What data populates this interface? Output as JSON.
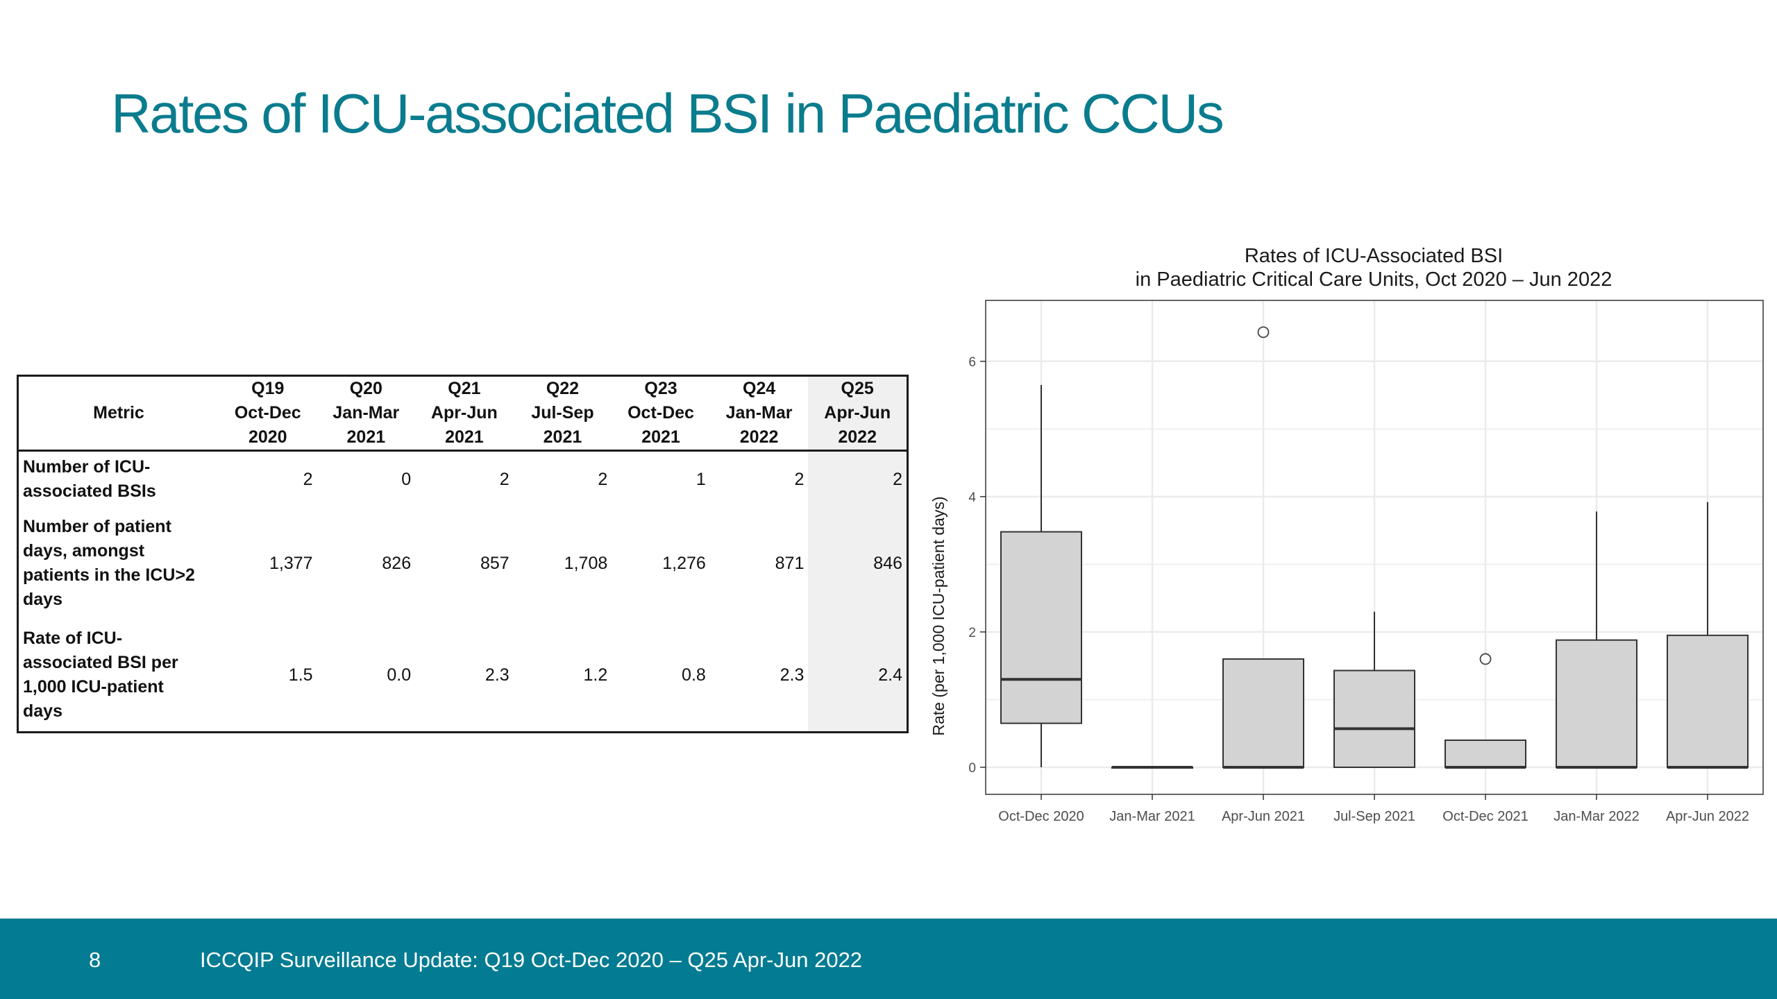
{
  "slide": {
    "title": "Rates of ICU-associated BSI in Paediatric CCUs",
    "page_number": "8",
    "footer": "ICCQIP Surveillance Update: Q19 Oct-Dec 2020 – Q25 Apr-Jun 2022"
  },
  "table": {
    "metric_header": "Metric",
    "columns": [
      {
        "q": "Q19",
        "period": "Oct-Dec",
        "year": "2020"
      },
      {
        "q": "Q20",
        "period": "Jan-Mar",
        "year": "2021"
      },
      {
        "q": "Q21",
        "period": "Apr-Jun",
        "year": "2021"
      },
      {
        "q": "Q22",
        "period": "Jul-Sep",
        "year": "2021"
      },
      {
        "q": "Q23",
        "period": "Oct-Dec",
        "year": "2021"
      },
      {
        "q": "Q24",
        "period": "Jan-Mar",
        "year": "2022"
      },
      {
        "q": "Q25",
        "period": "Apr-Jun",
        "year": "2022"
      }
    ],
    "rows": [
      {
        "label_lines": [
          "Number of ICU-",
          "associated BSIs"
        ],
        "values": [
          "2",
          "0",
          "2",
          "2",
          "1",
          "2",
          "2"
        ]
      },
      {
        "label_lines": [
          "Number of patient",
          "days, amongst",
          "patients in the ICU>2",
          "days"
        ],
        "values": [
          "1,377",
          "826",
          "857",
          "1,708",
          "1,276",
          "871",
          "846"
        ]
      },
      {
        "label_lines": [
          "Rate of ICU-",
          "associated BSI per",
          "1,000 ICU-patient",
          "days"
        ],
        "values": [
          "1.5",
          "0.0",
          "2.3",
          "1.2",
          "0.8",
          "2.3",
          "2.4"
        ]
      }
    ]
  },
  "chart_data": {
    "type": "boxplot",
    "title": "Rates of ICU-Associated BSI",
    "subtitle": "in Paediatric Critical Care Units, Oct 2020 – Jun 2022",
    "xlabel": "",
    "ylabel": "Rate (per 1,000 ICU-patient days)",
    "ylim": [
      -0.4,
      6.9
    ],
    "yticks": [
      0,
      2,
      4,
      6
    ],
    "grid": true,
    "categories": [
      "Oct-Dec 2020",
      "Jan-Mar 2021",
      "Apr-Jun 2021",
      "Jul-Sep 2021",
      "Oct-Dec 2021",
      "Jan-Mar 2022",
      "Apr-Jun 2022"
    ],
    "boxes": [
      {
        "whisker_low": 0,
        "q1": 0.65,
        "median": 1.3,
        "q3": 3.48,
        "whisker_high": 5.65,
        "outliers": []
      },
      {
        "whisker_low": 0,
        "q1": 0,
        "median": 0,
        "q3": 0,
        "whisker_high": 0,
        "outliers": []
      },
      {
        "whisker_low": 0,
        "q1": 0,
        "median": 0,
        "q3": 1.6,
        "whisker_high": 1.6,
        "outliers": [
          6.43
        ]
      },
      {
        "whisker_low": 0,
        "q1": 0,
        "median": 0.57,
        "q3": 1.43,
        "whisker_high": 2.3,
        "outliers": []
      },
      {
        "whisker_low": 0,
        "q1": 0,
        "median": 0,
        "q3": 0.4,
        "whisker_high": 0.4,
        "outliers": [
          1.6
        ]
      },
      {
        "whisker_low": 0,
        "q1": 0,
        "median": 0,
        "q3": 1.88,
        "whisker_high": 3.78,
        "outliers": []
      },
      {
        "whisker_low": 0,
        "q1": 0,
        "median": 0,
        "q3": 1.95,
        "whisker_high": 3.92,
        "outliers": []
      }
    ],
    "colors": {
      "box_fill": "#d3d3d3",
      "box_stroke": "#333333",
      "grid": "#ebebeb",
      "panel_border": "#333333"
    }
  }
}
